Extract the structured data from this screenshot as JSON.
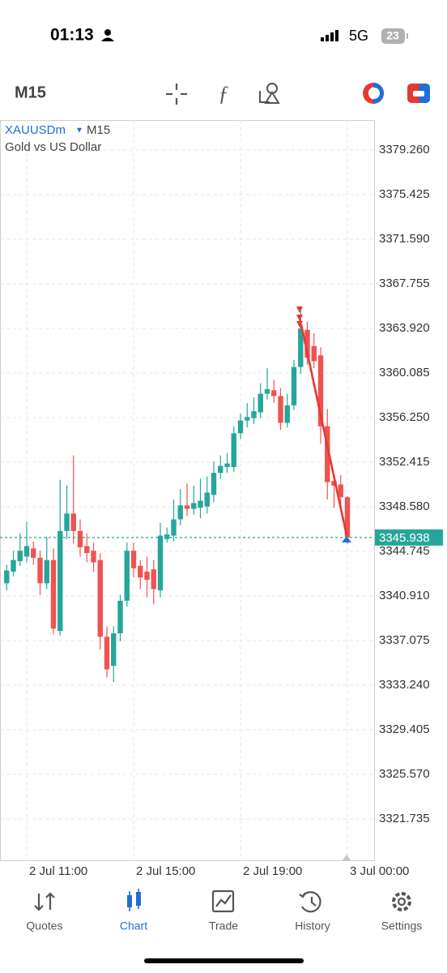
{
  "status_bar": {
    "time": "01:13",
    "network": "5G",
    "battery": "23"
  },
  "toolbar": {
    "timeframe": "M15"
  },
  "chart_data": {
    "type": "candlestick",
    "symbol": "XAUUSDm",
    "timeframe": "M15",
    "description": "Gold vs US Dollar",
    "up_color": "#26a69a",
    "down_color": "#ef5350",
    "categories": [
      null,
      null,
      null,
      "2 Jul 11:00",
      null,
      null,
      null,
      null,
      null,
      null,
      null,
      null,
      null,
      null,
      null,
      null,
      null,
      null,
      null,
      "2 Jul 15:00",
      null,
      null,
      null,
      null,
      null,
      null,
      null,
      null,
      null,
      null,
      null,
      null,
      null,
      null,
      null,
      "2 Jul 19:00",
      null,
      null,
      null,
      null,
      null,
      null,
      null,
      null,
      null,
      null,
      null,
      null,
      null,
      null,
      null,
      "3 Jul 00:00"
    ],
    "open": [
      3342.0,
      3343.0,
      3343.9,
      3344.3,
      3345.0,
      3344.2,
      3342.0,
      3344.0,
      3337.9,
      3346.5,
      3348.0,
      3346.5,
      3345.2,
      3344.8,
      3344.0,
      3337.4,
      3334.9,
      3337.7,
      3340.5,
      3344.8,
      3343.5,
      3343.0,
      3343.2,
      3341.4,
      3345.8,
      3346.1,
      3347.5,
      3348.7,
      3348.4,
      3348.5,
      3348.6,
      3349.6,
      3351.5,
      3352.0,
      3352.0,
      3354.9,
      3356.0,
      3356.2,
      3356.7,
      3358.3,
      3358.6,
      3358.1,
      3355.8,
      3357.3,
      3360.6,
      3363.8,
      3362.4,
      3361.6,
      3355.5,
      3350.8,
      3350.5,
      3349.4
    ],
    "high": [
      3343.6,
      3344.8,
      3346.3,
      3347.3,
      3345.6,
      3344.8,
      3346.0,
      3345.0,
      3350.9,
      3350.4,
      3353.0,
      3347.5,
      3346.3,
      3345.5,
      3344.6,
      3338.3,
      3338.3,
      3341.0,
      3345.5,
      3345.5,
      3344.0,
      3344.3,
      3344.0,
      3347.2,
      3346.8,
      3349.2,
      3350.1,
      3350.6,
      3350.4,
      3351.0,
      3351.2,
      3352.5,
      3353.0,
      3353.2,
      3355.5,
      3356.6,
      3357.5,
      3358.0,
      3359.2,
      3360.5,
      3359.5,
      3358.8,
      3358.3,
      3361.2,
      3365.5,
      3364.5,
      3363.5,
      3362.3,
      3357.0,
      3351.2,
      3351.3,
      3349.5
    ],
    "low": [
      3341.4,
      3342.6,
      3343.5,
      3343.8,
      3343.6,
      3341.0,
      3341.5,
      3337.6,
      3337.5,
      3345.8,
      3345.4,
      3344.3,
      3343.8,
      3343.0,
      3336.3,
      3333.9,
      3333.5,
      3337.0,
      3340.0,
      3342.5,
      3341.5,
      3340.8,
      3340.2,
      3340.8,
      3345.5,
      3345.6,
      3347.0,
      3347.8,
      3347.9,
      3347.6,
      3348.0,
      3349.0,
      3351.0,
      3351.5,
      3351.6,
      3354.4,
      3355.4,
      3355.7,
      3356.2,
      3357.8,
      3357.5,
      3355.2,
      3355.4,
      3356.9,
      3360.0,
      3360.8,
      3360.5,
      3354.0,
      3349.2,
      3348.5,
      3348.4,
      3345.4
    ],
    "close": [
      3343.1,
      3344.0,
      3344.8,
      3345.2,
      3344.2,
      3342.0,
      3344.0,
      3338.1,
      3346.5,
      3348.0,
      3346.5,
      3345.1,
      3344.6,
      3343.8,
      3337.4,
      3334.6,
      3337.7,
      3340.5,
      3344.8,
      3343.3,
      3342.5,
      3342.3,
      3341.5,
      3346.1,
      3346.2,
      3347.5,
      3348.7,
      3348.4,
      3348.9,
      3349.1,
      3349.8,
      3351.5,
      3352.1,
      3352.3,
      3354.9,
      3356.0,
      3356.3,
      3356.8,
      3358.3,
      3358.7,
      3358.1,
      3355.8,
      3357.3,
      3360.6,
      3363.9,
      3361.4,
      3361.1,
      3355.5,
      3350.7,
      3350.4,
      3349.4,
      3345.938
    ],
    "current_price": 3345.938,
    "ylim": [
      3318.11,
      3381.84
    ],
    "yticks": [
      {
        "value": 3379.26,
        "label": "3379.260"
      },
      3375.425,
      {
        "value": 3371.59,
        "label": "3371.590"
      },
      3367.755,
      {
        "value": 3363.92,
        "label": "3363.920"
      },
      3360.085,
      {
        "value": 3356.25,
        "label": "3356.250"
      },
      3352.415,
      {
        "value": 3348.58,
        "label": "3348.580"
      },
      3344.745,
      {
        "value": 3340.91,
        "label": "3340.910"
      },
      3337.075,
      {
        "value": 3333.24,
        "label": "3333.240"
      },
      3329.405,
      {
        "value": 3325.57,
        "label": "3325.570"
      },
      3321.735
    ],
    "grid": true
  },
  "bottom_nav": {
    "items": [
      "Quotes",
      "Chart",
      "Trade",
      "History",
      "Settings"
    ],
    "active": 1
  }
}
